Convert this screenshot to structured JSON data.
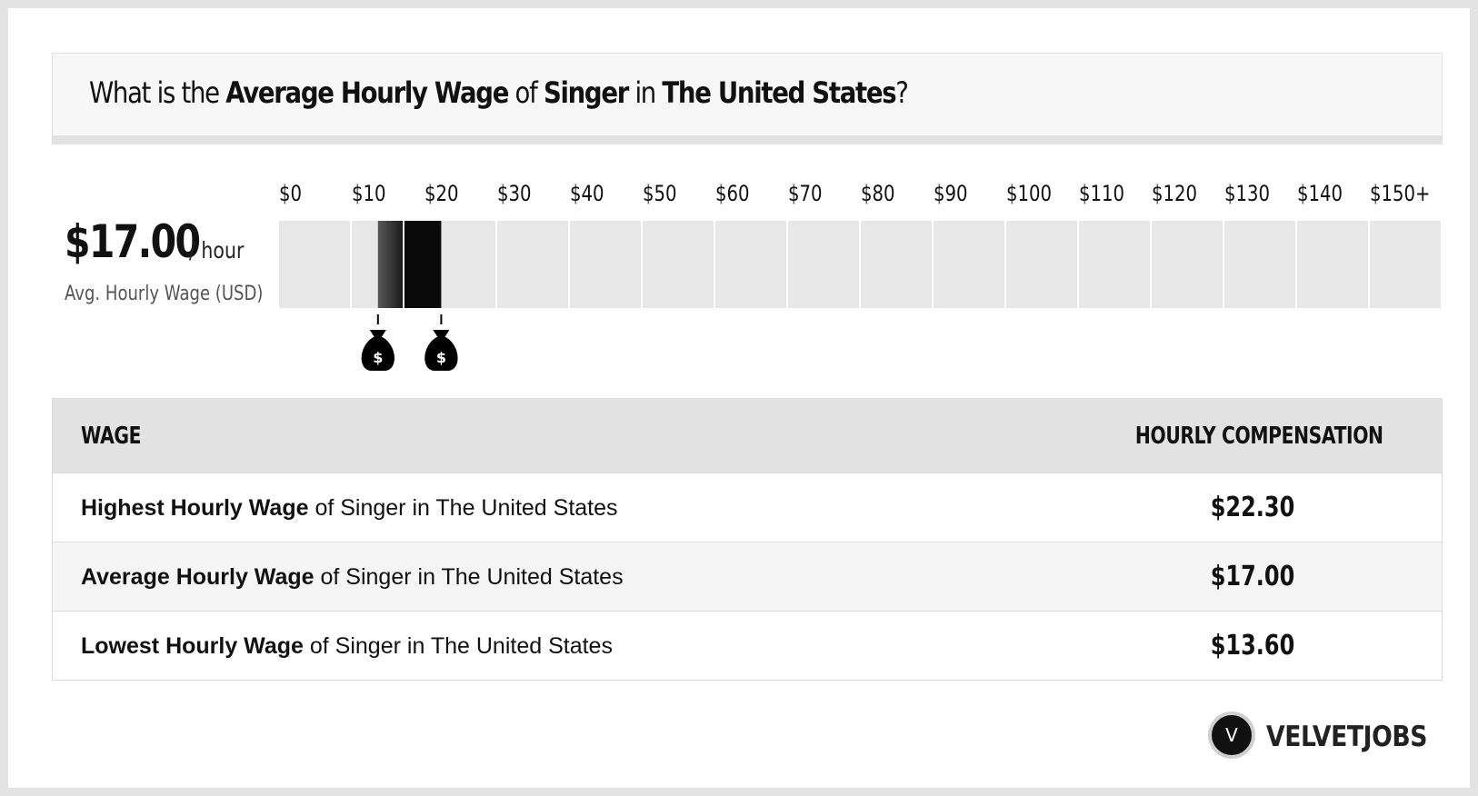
{
  "title": {
    "prefix": "What is the ",
    "metric": "Average Hourly Wage",
    "of": " of ",
    "job": "Singer",
    "in": " in ",
    "location": "The United States",
    "suffix": "?"
  },
  "average": {
    "value": "$17.00",
    "unit": "/ hour",
    "label": "Avg. Hourly Wage (USD)"
  },
  "chart_data": {
    "type": "bar",
    "ticks": [
      "$0",
      "$10",
      "$20",
      "$30",
      "$40",
      "$50",
      "$60",
      "$70",
      "$80",
      "$90",
      "$100",
      "$110",
      "$120",
      "$130",
      "$140",
      "$150+"
    ],
    "xlim": [
      0,
      150
    ],
    "tick_step": 10,
    "range_low": 13.6,
    "range_average": 17.0,
    "range_high": 22.3,
    "colors": {
      "track": "#e7e7e7",
      "gradient_start": "#595959",
      "gradient_end": "#1a1a1a",
      "upper_segment": "#0a0a0a",
      "marker": "#000000"
    },
    "markers": [
      "money-bag-icon",
      "money-bag-icon"
    ]
  },
  "table": {
    "header": {
      "wage": "WAGE",
      "compensation": "HOURLY COMPENSATION"
    },
    "rows": [
      {
        "bold": "Highest Hourly Wage",
        "rest": " of Singer in The United States",
        "value": "$22.30"
      },
      {
        "bold": "Average Hourly Wage",
        "rest": " of Singer in The United States",
        "value": "$17.00"
      },
      {
        "bold": "Lowest Hourly Wage",
        "rest": " of Singer in The United States",
        "value": "$13.60"
      }
    ]
  },
  "logo": {
    "letter": "V",
    "text": "VELVETJOBS"
  }
}
